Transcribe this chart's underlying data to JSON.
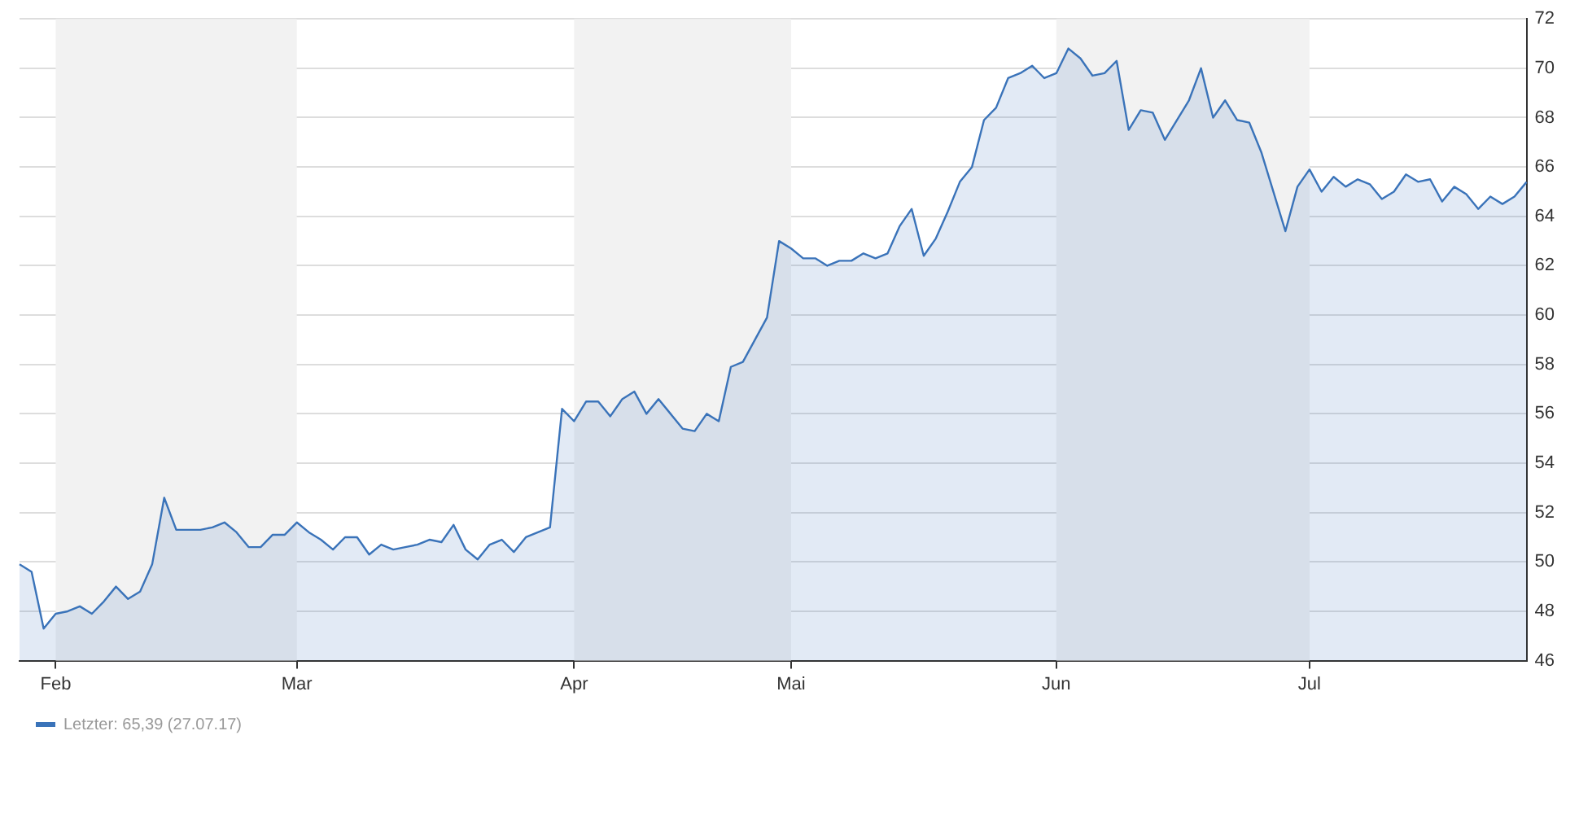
{
  "chart_data": {
    "type": "area",
    "categories": [
      null,
      null,
      null,
      "Feb",
      null,
      null,
      null,
      null,
      null,
      null,
      null,
      null,
      null,
      null,
      null,
      null,
      null,
      null,
      null,
      null,
      null,
      null,
      null,
      "Mar",
      null,
      null,
      null,
      null,
      null,
      null,
      null,
      null,
      null,
      null,
      null,
      null,
      null,
      null,
      null,
      null,
      null,
      null,
      null,
      null,
      null,
      null,
      "Apr",
      null,
      null,
      null,
      null,
      null,
      null,
      null,
      null,
      null,
      null,
      null,
      null,
      null,
      null,
      null,
      null,
      null,
      "Mai",
      null,
      null,
      null,
      null,
      null,
      null,
      null,
      null,
      null,
      null,
      null,
      null,
      null,
      null,
      null,
      null,
      null,
      null,
      null,
      null,
      null,
      "Jun",
      null,
      null,
      null,
      null,
      null,
      null,
      null,
      null,
      null,
      null,
      null,
      null,
      null,
      null,
      null,
      null,
      null,
      null,
      null,
      null,
      "Jul",
      null,
      null,
      null,
      null,
      null,
      null,
      null,
      null,
      null,
      null,
      null,
      null,
      null,
      null,
      null,
      null,
      null,
      null
    ],
    "series": [
      {
        "name": "Letzter: 65,39 (27.07.17)",
        "color": "#3a73b9",
        "values": [
          49.9,
          49.6,
          47.3,
          47.9,
          48.0,
          48.2,
          47.9,
          48.4,
          49.0,
          48.5,
          48.8,
          49.9,
          52.6,
          51.3,
          51.3,
          51.3,
          51.4,
          51.6,
          51.2,
          50.6,
          50.6,
          51.1,
          51.1,
          51.6,
          51.2,
          50.9,
          50.5,
          51.0,
          51.0,
          50.3,
          50.7,
          50.5,
          50.6,
          50.7,
          50.9,
          50.8,
          51.5,
          50.5,
          50.1,
          50.7,
          50.9,
          50.4,
          51.0,
          51.2,
          51.4,
          56.2,
          55.7,
          56.5,
          56.5,
          55.9,
          56.6,
          56.9,
          56.0,
          56.6,
          56.0,
          55.4,
          55.3,
          56.0,
          55.7,
          57.9,
          58.1,
          59.0,
          59.9,
          63.0,
          62.7,
          62.3,
          62.3,
          62.0,
          62.2,
          62.2,
          62.5,
          62.3,
          62.5,
          63.6,
          64.3,
          62.4,
          63.1,
          64.2,
          65.4,
          66.0,
          67.9,
          68.4,
          69.6,
          69.8,
          70.1,
          69.6,
          69.8,
          70.8,
          70.4,
          69.7,
          69.8,
          70.3,
          67.5,
          68.3,
          68.2,
          67.1,
          67.9,
          68.7,
          70.0,
          68.0,
          68.7,
          67.9,
          67.8,
          66.6,
          65.0,
          63.4,
          65.2,
          65.9,
          65.0,
          65.6,
          65.2,
          65.5,
          65.3,
          64.7,
          65.0,
          65.7,
          65.4,
          65.5,
          64.6,
          65.2,
          64.9,
          64.3,
          64.8,
          64.5,
          64.8,
          65.39
        ]
      }
    ],
    "ylim": [
      46,
      72
    ],
    "yticks": [
      46,
      48,
      50,
      52,
      54,
      56,
      58,
      60,
      62,
      64,
      66,
      68,
      70,
      72
    ],
    "bands": [
      {
        "axis": "x",
        "from": "Feb",
        "to": "Mar",
        "color": "#f2f2f2"
      },
      {
        "axis": "x",
        "from": "Apr",
        "to": "Mai",
        "color": "#f2f2f2"
      },
      {
        "axis": "x",
        "from": "Jun",
        "to": "Jul",
        "color": "#f2f2f2"
      }
    ],
    "grid": "y",
    "legend": "bottom left",
    "marker": "none",
    "line_style": "solid"
  }
}
